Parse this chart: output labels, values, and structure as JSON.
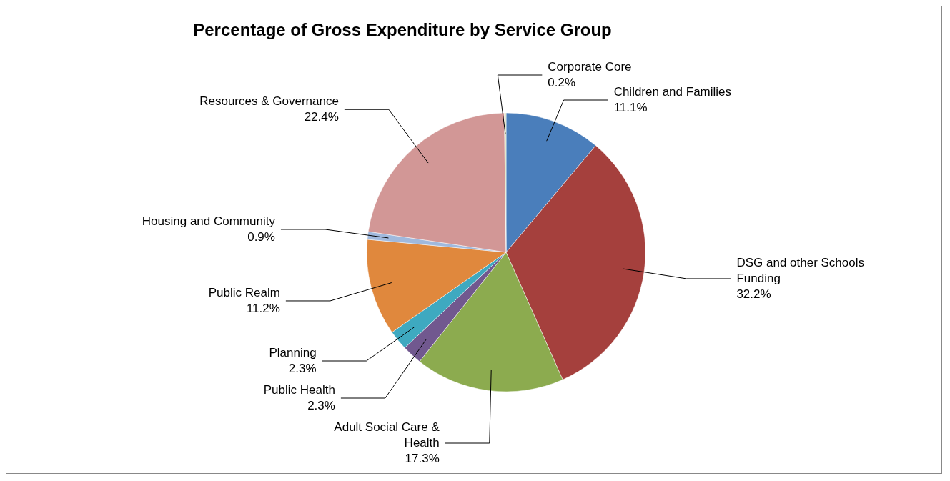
{
  "chart_data": {
    "type": "pie",
    "title": "Percentage of Gross Expenditure by Service Group",
    "categories": [
      "Children and Families",
      "DSG and other Schools Funding",
      "Adult Social Care & Health",
      "Public Health",
      "Planning",
      "Public Realm",
      "Housing and Community",
      "Resources & Governance",
      "Corporate Core"
    ],
    "values": [
      11.1,
      32.2,
      17.3,
      2.3,
      2.3,
      11.2,
      0.9,
      22.4,
      0.2
    ],
    "colors": [
      "#4a7ebb",
      "#a5403d",
      "#8cab4f",
      "#71588f",
      "#3ea9c0",
      "#e0883d",
      "#a0b9dd",
      "#d29796",
      "#d7e4bd"
    ],
    "value_labels": [
      "11.1%",
      "32.2%",
      "17.3%",
      "2.3%",
      "2.3%",
      "11.2%",
      "0.9%",
      "22.4%",
      "0.2%"
    ]
  }
}
